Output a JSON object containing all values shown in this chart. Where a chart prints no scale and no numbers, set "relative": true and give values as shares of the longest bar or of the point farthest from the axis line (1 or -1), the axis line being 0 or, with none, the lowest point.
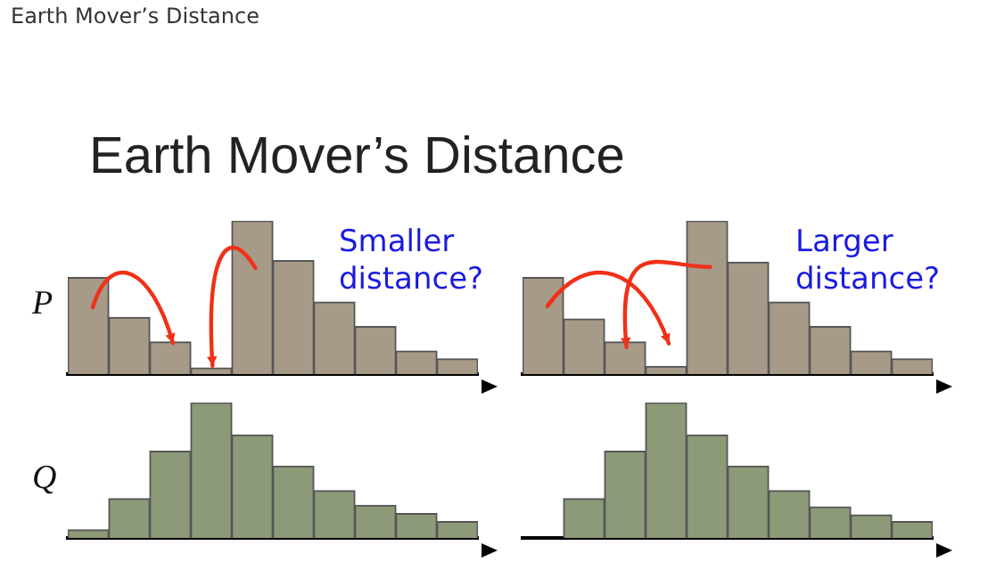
{
  "chart_data": [
    {
      "type": "bar",
      "title": "Earth Mover’s Distance",
      "ylabel": "P",
      "annotations": [
        "Earth Mover’s Distance",
        "Smaller distance?"
      ],
      "relative": true,
      "tick_labels": false,
      "categories": [
        null,
        null,
        null,
        null,
        null,
        null,
        null,
        null,
        null,
        null
      ],
      "color": "#a89a88",
      "values": [
        0.63,
        0.37,
        0.21,
        0.04,
        1,
        0.74,
        0.47,
        0.31,
        0.15,
        0.1
      ]
    },
    {
      "type": "bar",
      "annotations": [
        "Larger distance?"
      ],
      "relative": true,
      "tick_labels": false,
      "categories": [
        null,
        null,
        null,
        null,
        null,
        null,
        null,
        null,
        null,
        null
      ],
      "color": "#a89a88",
      "values": [
        0.63,
        0.36,
        0.21,
        0.05,
        1,
        0.73,
        0.47,
        0.31,
        0.15,
        0.1
      ]
    },
    {
      "type": "bar",
      "ylabel": "Q",
      "relative": true,
      "tick_labels": false,
      "categories": [
        null,
        null,
        null,
        null,
        null,
        null,
        null,
        null,
        null,
        null
      ],
      "color": "#8c9a78",
      "values": [
        0.06,
        0.29,
        0.64,
        1,
        0.76,
        0.53,
        0.35,
        0.24,
        0.18,
        0.12
      ]
    },
    {
      "type": "bar",
      "relative": true,
      "tick_labels": false,
      "categories": [
        null,
        null,
        null,
        null,
        null,
        null,
        null,
        null,
        null,
        null
      ],
      "color": "#8c9a78",
      "values": [
        0,
        0.29,
        0.64,
        1,
        0.76,
        0.53,
        0.35,
        0.23,
        0.17,
        0.12
      ]
    }
  ]
}
